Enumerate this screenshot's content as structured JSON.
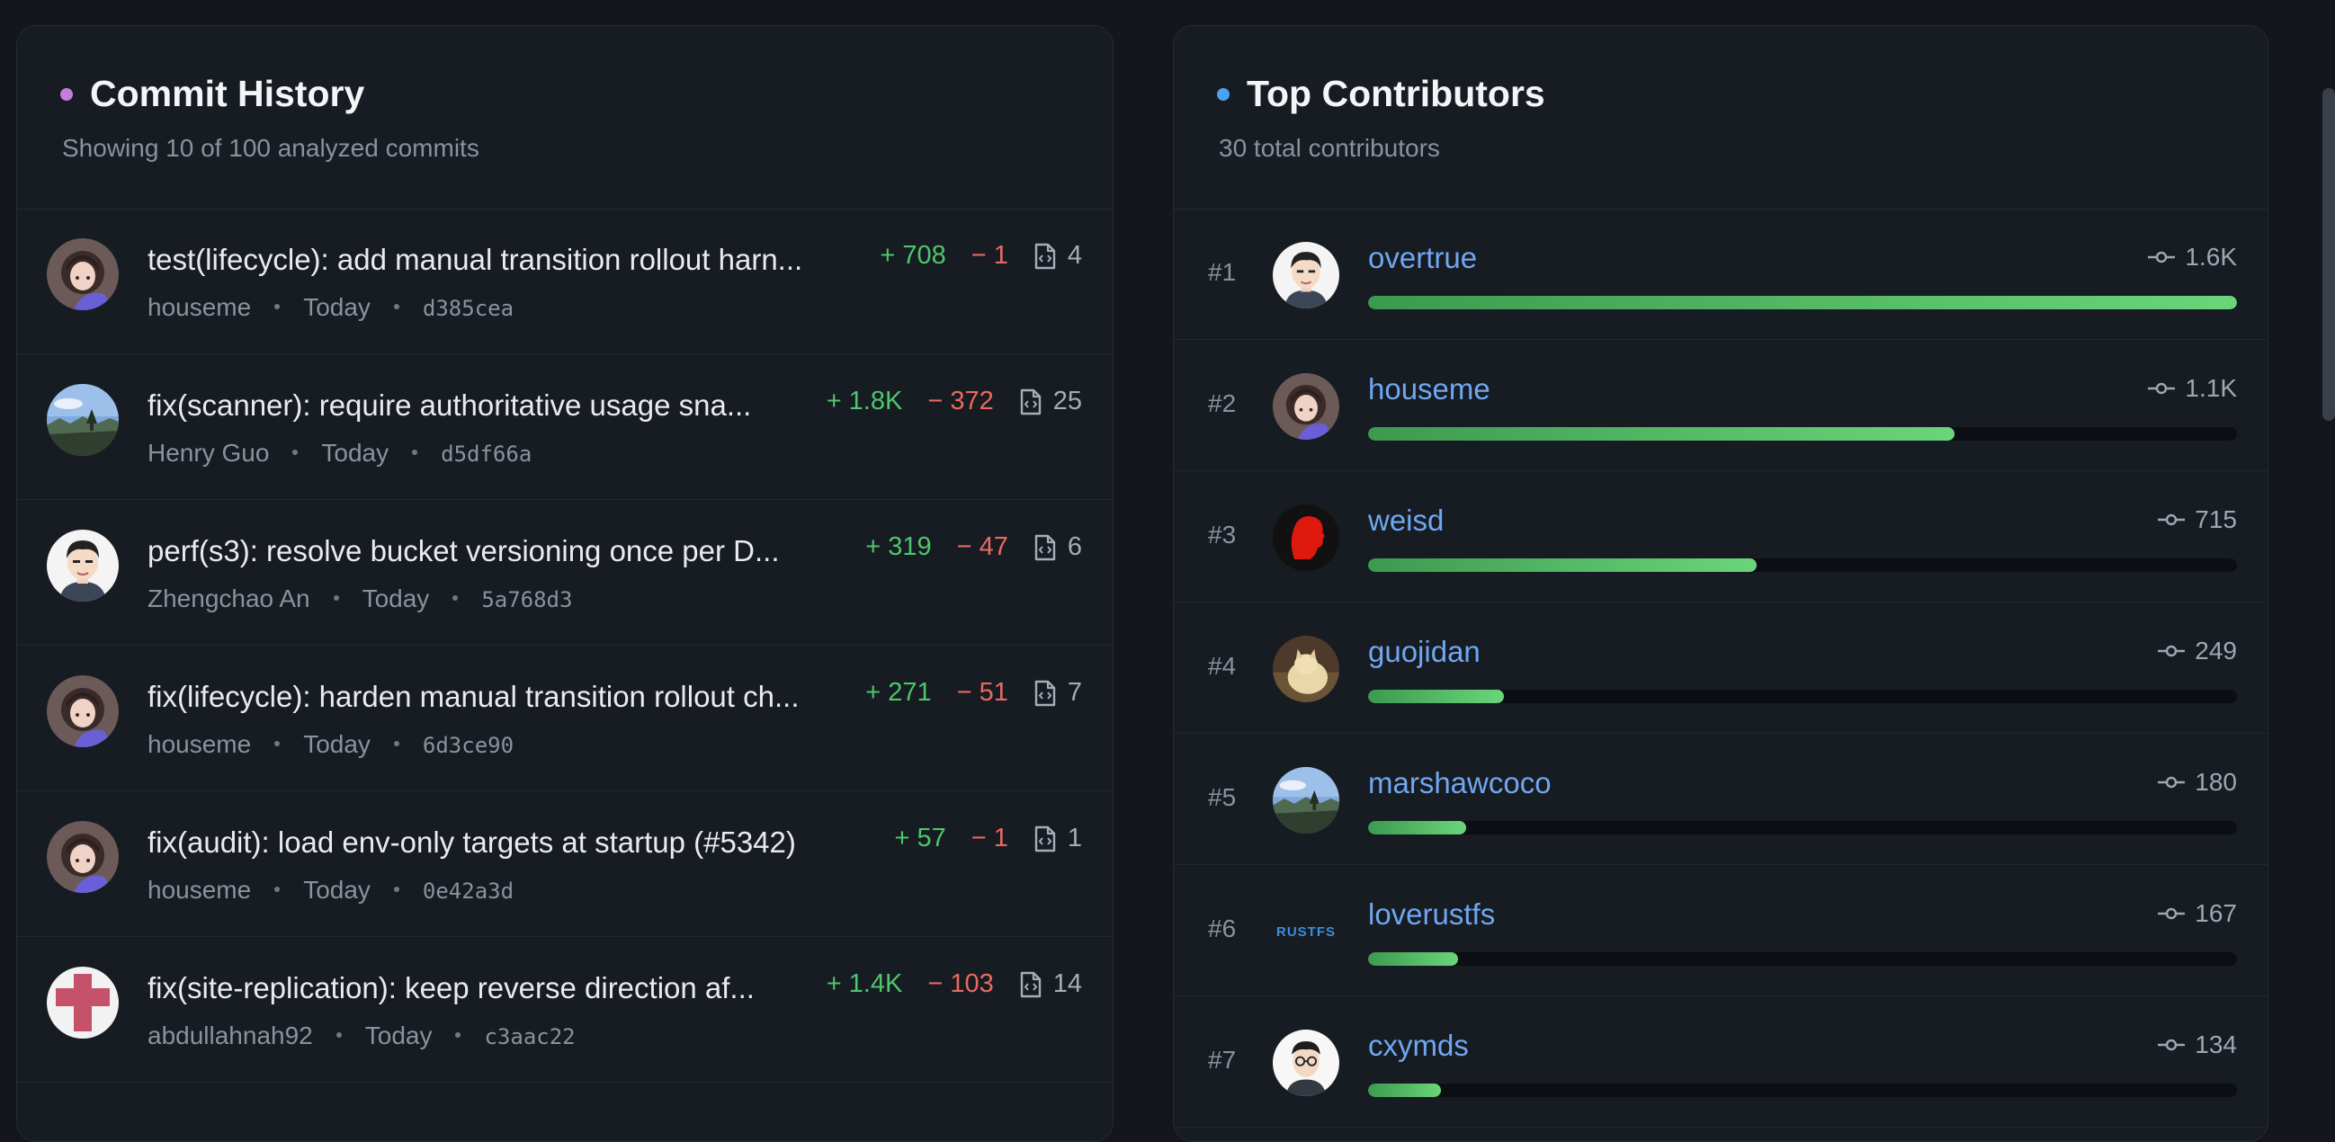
{
  "colors": {
    "commit_dot": "#c77ddb",
    "contrib_dot": "#4aa3ef",
    "additions": "#4ec66b",
    "deletions": "#ea6a62",
    "link": "#6fa7f0",
    "bar": "#5cc46e"
  },
  "commit_history": {
    "title": "Commit History",
    "subtitle": "Showing 10 of 100 analyzed commits",
    "commits": [
      {
        "message": "test(lifecycle): add manual transition rollout harn...",
        "author": "houseme",
        "date": "Today",
        "hash": "d385cea",
        "additions": "+ 708",
        "deletions": "− 1",
        "files": "4",
        "avatar": "anime-girl-avatar"
      },
      {
        "message": "fix(scanner): require authoritative usage sna...",
        "author": "Henry Guo",
        "date": "Today",
        "hash": "d5df66a",
        "additions": "+ 1.8K",
        "deletions": "− 372",
        "files": "25",
        "avatar": "landscape-avatar"
      },
      {
        "message": "perf(s3): resolve bucket versioning once per D...",
        "author": "Zhengchao An",
        "date": "Today",
        "hash": "5a768d3",
        "additions": "+ 319",
        "deletions": "− 47",
        "files": "6",
        "avatar": "cartoon-man-avatar"
      },
      {
        "message": "fix(lifecycle): harden manual transition rollout ch...",
        "author": "houseme",
        "date": "Today",
        "hash": "6d3ce90",
        "additions": "+ 271",
        "deletions": "− 51",
        "files": "7",
        "avatar": "anime-girl-avatar"
      },
      {
        "message": "fix(audit): load env-only targets at startup (#5342)",
        "author": "houseme",
        "date": "Today",
        "hash": "0e42a3d",
        "additions": "+ 57",
        "deletions": "− 1",
        "files": "1",
        "avatar": "anime-girl-avatar"
      },
      {
        "message": "fix(site-replication): keep reverse direction af...",
        "author": "abdullahnah92",
        "date": "Today",
        "hash": "c3aac22",
        "additions": "+ 1.4K",
        "deletions": "− 103",
        "files": "14",
        "avatar": "pink-cross-avatar"
      }
    ]
  },
  "top_contributors": {
    "title": "Top Contributors",
    "subtitle": "30 total contributors",
    "max_commits": 1600,
    "contributors": [
      {
        "rank": "#1",
        "name": "overtrue",
        "count_label": "1.6K",
        "commits": 1600,
        "avatar": "cartoon-man-avatar"
      },
      {
        "rank": "#2",
        "name": "houseme",
        "count_label": "1.1K",
        "commits": 1080,
        "avatar": "anime-girl-avatar"
      },
      {
        "rank": "#3",
        "name": "weisd",
        "count_label": "715",
        "commits": 715,
        "avatar": "red-profile-avatar"
      },
      {
        "rank": "#4",
        "name": "guojidan",
        "count_label": "249",
        "commits": 249,
        "avatar": "cat-avatar"
      },
      {
        "rank": "#5",
        "name": "marshawcoco",
        "count_label": "180",
        "commits": 180,
        "avatar": "landscape-avatar"
      },
      {
        "rank": "#6",
        "name": "loverustfs",
        "count_label": "167",
        "commits": 167,
        "avatar": "rustfs-logo-avatar"
      },
      {
        "rank": "#7",
        "name": "cxymds",
        "count_label": "134",
        "commits": 134,
        "avatar": "glasses-man-avatar"
      }
    ]
  },
  "rustfs_logo_text": "RUSTFS"
}
